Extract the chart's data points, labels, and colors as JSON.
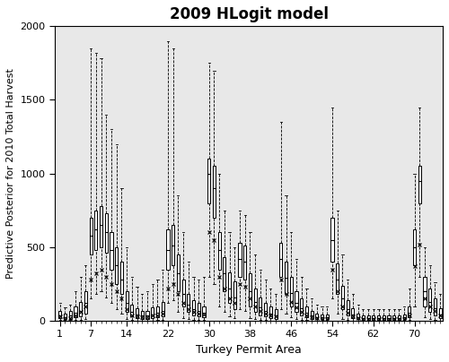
{
  "title": "2009 HLogit model",
  "xlabel": "Turkey Permit Area",
  "ylabel": "Predictive Posterior for 2010 Total Harvest",
  "ylim": [
    0,
    2000
  ],
  "xlim": [
    0.0,
    75.5
  ],
  "xticks": [
    1,
    7,
    14,
    22,
    30,
    38,
    46,
    54,
    62,
    70
  ],
  "yticks": [
    0,
    500,
    1000,
    1500,
    2000
  ],
  "n_areas": 75,
  "bg_color": "#e8e8e8",
  "box_facecolor": "white",
  "line_color": "black",
  "box_width": 0.55,
  "boxes": [
    {
      "x": 1,
      "q1": 20,
      "med": 40,
      "q3": 70,
      "wl": 5,
      "wh": 120,
      "actual": 30
    },
    {
      "x": 2,
      "q1": 10,
      "med": 25,
      "q3": 50,
      "wl": 2,
      "wh": 90,
      "actual": 15
    },
    {
      "x": 3,
      "q1": 15,
      "med": 35,
      "q3": 65,
      "wl": 5,
      "wh": 110,
      "actual": 20
    },
    {
      "x": 4,
      "q1": 25,
      "med": 55,
      "q3": 100,
      "wl": 5,
      "wh": 200,
      "actual": 40
    },
    {
      "x": 5,
      "q1": 30,
      "med": 70,
      "q3": 130,
      "wl": 5,
      "wh": 300,
      "actual": 60
    },
    {
      "x": 6,
      "q1": 50,
      "med": 120,
      "q3": 200,
      "wl": 10,
      "wh": 380,
      "actual": 100
    },
    {
      "x": 7,
      "q1": 450,
      "med": 580,
      "q3": 700,
      "wl": 150,
      "wh": 1850,
      "actual": 280
    },
    {
      "x": 8,
      "q1": 480,
      "med": 620,
      "q3": 750,
      "wl": 180,
      "wh": 1820,
      "actual": 320
    },
    {
      "x": 9,
      "q1": 500,
      "med": 650,
      "q3": 780,
      "wl": 200,
      "wh": 1780,
      "actual": 350
    },
    {
      "x": 10,
      "q1": 460,
      "med": 600,
      "q3": 730,
      "wl": 160,
      "wh": 1400,
      "actual": 300
    },
    {
      "x": 11,
      "q1": 350,
      "med": 480,
      "q3": 600,
      "wl": 120,
      "wh": 1300,
      "actual": 250
    },
    {
      "x": 12,
      "q1": 250,
      "med": 380,
      "q3": 500,
      "wl": 80,
      "wh": 1200,
      "actual": 200
    },
    {
      "x": 13,
      "q1": 180,
      "med": 280,
      "q3": 400,
      "wl": 50,
      "wh": 900,
      "actual": 150
    },
    {
      "x": 14,
      "q1": 60,
      "med": 120,
      "q3": 200,
      "wl": 10,
      "wh": 500,
      "actual": 80
    },
    {
      "x": 15,
      "q1": 30,
      "med": 60,
      "q3": 110,
      "wl": 5,
      "wh": 300,
      "actual": 40
    },
    {
      "x": 16,
      "q1": 20,
      "med": 45,
      "q3": 85,
      "wl": 3,
      "wh": 230,
      "actual": 30
    },
    {
      "x": 17,
      "q1": 15,
      "med": 35,
      "q3": 70,
      "wl": 3,
      "wh": 180,
      "actual": 25
    },
    {
      "x": 18,
      "q1": 15,
      "med": 35,
      "q3": 70,
      "wl": 3,
      "wh": 200,
      "actual": 25
    },
    {
      "x": 19,
      "q1": 20,
      "med": 45,
      "q3": 90,
      "wl": 3,
      "wh": 250,
      "actual": 35
    },
    {
      "x": 20,
      "q1": 25,
      "med": 55,
      "q3": 100,
      "wl": 5,
      "wh": 280,
      "actual": 40
    },
    {
      "x": 21,
      "q1": 30,
      "med": 70,
      "q3": 130,
      "wl": 5,
      "wh": 350,
      "actual": 50
    },
    {
      "x": 22,
      "q1": 350,
      "med": 480,
      "q3": 620,
      "wl": 120,
      "wh": 1900,
      "actual": 220
    },
    {
      "x": 23,
      "q1": 380,
      "med": 510,
      "q3": 650,
      "wl": 140,
      "wh": 1850,
      "actual": 250
    },
    {
      "x": 24,
      "q1": 200,
      "med": 320,
      "q3": 450,
      "wl": 60,
      "wh": 850,
      "actual": 180
    },
    {
      "x": 25,
      "q1": 100,
      "med": 180,
      "q3": 280,
      "wl": 20,
      "wh": 600,
      "actual": 120
    },
    {
      "x": 26,
      "q1": 60,
      "med": 110,
      "q3": 180,
      "wl": 10,
      "wh": 400,
      "actual": 80
    },
    {
      "x": 27,
      "q1": 40,
      "med": 80,
      "q3": 140,
      "wl": 8,
      "wh": 300,
      "actual": 60
    },
    {
      "x": 28,
      "q1": 30,
      "med": 65,
      "q3": 120,
      "wl": 5,
      "wh": 280,
      "actual": 50
    },
    {
      "x": 29,
      "q1": 25,
      "med": 55,
      "q3": 100,
      "wl": 5,
      "wh": 300,
      "actual": 45
    },
    {
      "x": 30,
      "q1": 800,
      "med": 1000,
      "q3": 1100,
      "wl": 300,
      "wh": 1750,
      "actual": 600
    },
    {
      "x": 31,
      "q1": 700,
      "med": 900,
      "q3": 1050,
      "wl": 250,
      "wh": 1700,
      "actual": 550
    },
    {
      "x": 32,
      "q1": 350,
      "med": 480,
      "q3": 600,
      "wl": 100,
      "wh": 1000,
      "actual": 300
    },
    {
      "x": 33,
      "q1": 200,
      "med": 320,
      "q3": 430,
      "wl": 60,
      "wh": 750,
      "actual": 220
    },
    {
      "x": 34,
      "q1": 120,
      "med": 220,
      "q3": 330,
      "wl": 30,
      "wh": 600,
      "actual": 150
    },
    {
      "x": 35,
      "q1": 80,
      "med": 160,
      "q3": 270,
      "wl": 20,
      "wh": 500,
      "actual": 120
    },
    {
      "x": 36,
      "q1": 300,
      "med": 420,
      "q3": 530,
      "wl": 80,
      "wh": 750,
      "actual": 250
    },
    {
      "x": 37,
      "q1": 280,
      "med": 400,
      "q3": 510,
      "wl": 70,
      "wh": 720,
      "actual": 230
    },
    {
      "x": 38,
      "q1": 100,
      "med": 200,
      "q3": 320,
      "wl": 20,
      "wh": 600,
      "actual": 150
    },
    {
      "x": 39,
      "q1": 60,
      "med": 130,
      "q3": 220,
      "wl": 10,
      "wh": 450,
      "actual": 100
    },
    {
      "x": 40,
      "q1": 40,
      "med": 90,
      "q3": 160,
      "wl": 8,
      "wh": 350,
      "actual": 70
    },
    {
      "x": 41,
      "q1": 30,
      "med": 65,
      "q3": 120,
      "wl": 5,
      "wh": 280,
      "actual": 50
    },
    {
      "x": 42,
      "q1": 20,
      "med": 50,
      "q3": 95,
      "wl": 3,
      "wh": 220,
      "actual": 35
    },
    {
      "x": 43,
      "q1": 15,
      "med": 40,
      "q3": 80,
      "wl": 3,
      "wh": 180,
      "actual": 30
    },
    {
      "x": 44,
      "q1": 300,
      "med": 420,
      "q3": 530,
      "wl": 80,
      "wh": 1350,
      "actual": 280
    },
    {
      "x": 45,
      "q1": 180,
      "med": 290,
      "q3": 400,
      "wl": 50,
      "wh": 850,
      "actual": 180
    },
    {
      "x": 46,
      "q1": 100,
      "med": 190,
      "q3": 300,
      "wl": 25,
      "wh": 600,
      "actual": 130
    },
    {
      "x": 47,
      "q1": 60,
      "med": 120,
      "q3": 200,
      "wl": 10,
      "wh": 420,
      "actual": 90
    },
    {
      "x": 48,
      "q1": 40,
      "med": 85,
      "q3": 150,
      "wl": 8,
      "wh": 300,
      "actual": 60
    },
    {
      "x": 49,
      "q1": 25,
      "med": 55,
      "q3": 100,
      "wl": 5,
      "wh": 220,
      "actual": 40
    },
    {
      "x": 50,
      "q1": 15,
      "med": 35,
      "q3": 70,
      "wl": 3,
      "wh": 150,
      "actual": 25
    },
    {
      "x": 51,
      "q1": 10,
      "med": 25,
      "q3": 50,
      "wl": 2,
      "wh": 110,
      "actual": 18
    },
    {
      "x": 52,
      "q1": 10,
      "med": 22,
      "q3": 45,
      "wl": 2,
      "wh": 100,
      "actual": 15
    },
    {
      "x": 53,
      "q1": 10,
      "med": 22,
      "q3": 45,
      "wl": 2,
      "wh": 100,
      "actual": 15
    },
    {
      "x": 54,
      "q1": 400,
      "med": 550,
      "q3": 700,
      "wl": 150,
      "wh": 1450,
      "actual": 350
    },
    {
      "x": 55,
      "q1": 180,
      "med": 280,
      "q3": 390,
      "wl": 50,
      "wh": 750,
      "actual": 200
    },
    {
      "x": 56,
      "q1": 80,
      "med": 150,
      "q3": 240,
      "wl": 15,
      "wh": 450,
      "actual": 100
    },
    {
      "x": 57,
      "q1": 40,
      "med": 80,
      "q3": 140,
      "wl": 8,
      "wh": 280,
      "actual": 55
    },
    {
      "x": 58,
      "q1": 20,
      "med": 45,
      "q3": 85,
      "wl": 3,
      "wh": 180,
      "actual": 30
    },
    {
      "x": 59,
      "q1": 10,
      "med": 25,
      "q3": 50,
      "wl": 2,
      "wh": 110,
      "actual": 18
    },
    {
      "x": 60,
      "q1": 8,
      "med": 18,
      "q3": 38,
      "wl": 1,
      "wh": 80,
      "actual": 12
    },
    {
      "x": 61,
      "q1": 8,
      "med": 18,
      "q3": 38,
      "wl": 1,
      "wh": 80,
      "actual": 12
    },
    {
      "x": 62,
      "q1": 8,
      "med": 18,
      "q3": 38,
      "wl": 1,
      "wh": 80,
      "actual": 12
    },
    {
      "x": 63,
      "q1": 8,
      "med": 18,
      "q3": 38,
      "wl": 1,
      "wh": 80,
      "actual": 12
    },
    {
      "x": 64,
      "q1": 8,
      "med": 18,
      "q3": 38,
      "wl": 1,
      "wh": 80,
      "actual": 12
    },
    {
      "x": 65,
      "q1": 8,
      "med": 18,
      "q3": 38,
      "wl": 1,
      "wh": 80,
      "actual": 12
    },
    {
      "x": 66,
      "q1": 8,
      "med": 18,
      "q3": 38,
      "wl": 1,
      "wh": 80,
      "actual": 12
    },
    {
      "x": 67,
      "q1": 8,
      "med": 18,
      "q3": 38,
      "wl": 1,
      "wh": 80,
      "actual": 12
    },
    {
      "x": 68,
      "q1": 10,
      "med": 22,
      "q3": 45,
      "wl": 2,
      "wh": 100,
      "actual": 15
    },
    {
      "x": 69,
      "q1": 25,
      "med": 55,
      "q3": 100,
      "wl": 5,
      "wh": 220,
      "actual": 40
    },
    {
      "x": 70,
      "q1": 380,
      "med": 500,
      "q3": 620,
      "wl": 100,
      "wh": 1000,
      "actual": 370
    },
    {
      "x": 71,
      "q1": 800,
      "med": 950,
      "q3": 1050,
      "wl": 300,
      "wh": 1450,
      "actual": 520
    },
    {
      "x": 72,
      "q1": 100,
      "med": 200,
      "q3": 300,
      "wl": 25,
      "wh": 500,
      "actual": 150
    },
    {
      "x": 73,
      "q1": 60,
      "med": 130,
      "q3": 220,
      "wl": 10,
      "wh": 380,
      "actual": 100
    },
    {
      "x": 74,
      "q1": 40,
      "med": 85,
      "q3": 150,
      "wl": 8,
      "wh": 260,
      "actual": 65
    },
    {
      "x": 75,
      "q1": 20,
      "med": 45,
      "q3": 85,
      "wl": 3,
      "wh": 180,
      "actual": 35
    }
  ]
}
